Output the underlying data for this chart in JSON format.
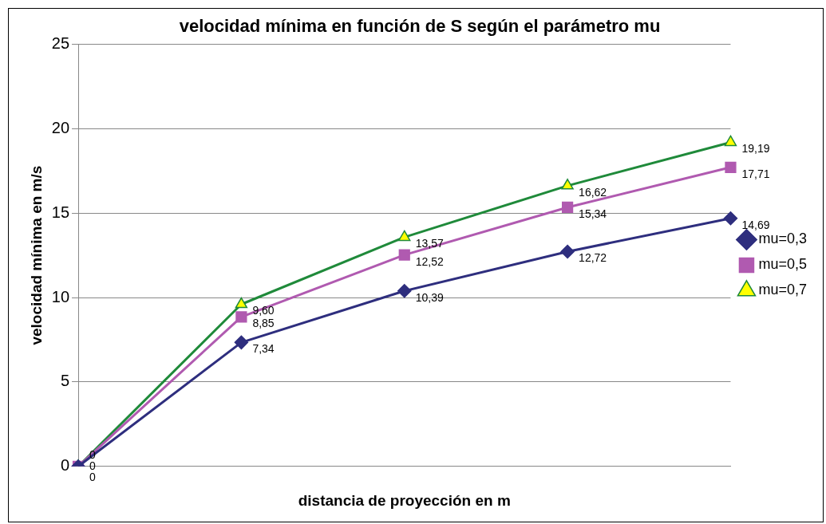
{
  "chart_data": {
    "type": "line",
    "title": "velocidad mínima en función de S según el parámetro mu",
    "xlabel": "distancia de proyección en m",
    "ylabel": "velocidad mínima en m/s",
    "categories": [
      null,
      null,
      null,
      null,
      null
    ],
    "series": [
      {
        "name": "mu=0,3",
        "color": "#2e2e7e",
        "marker": "diamond",
        "values": [
          0,
          7.34,
          10.39,
          12.72,
          14.69
        ],
        "value_labels": [
          "0",
          "7,34",
          "10,39",
          "12,72",
          "14,69"
        ]
      },
      {
        "name": "mu=0,5",
        "color": "#b05ab0",
        "marker": "square",
        "values": [
          0,
          8.85,
          12.52,
          15.34,
          17.71
        ],
        "value_labels": [
          "0",
          "8,85",
          "12,52",
          "15,34",
          "17,71"
        ]
      },
      {
        "name": "mu=0,7",
        "color": "#1f8a3a",
        "marker": "triangle",
        "values": [
          0,
          9.6,
          13.57,
          16.62,
          19.19
        ],
        "value_labels": [
          "0",
          "9,60",
          "13,57",
          "16,62",
          "19,19"
        ]
      }
    ],
    "ylim": [
      0,
      25
    ],
    "yticks": [
      0,
      5,
      10,
      15,
      20,
      25
    ],
    "grid": "y",
    "legend": "right",
    "line_style": "solid"
  }
}
